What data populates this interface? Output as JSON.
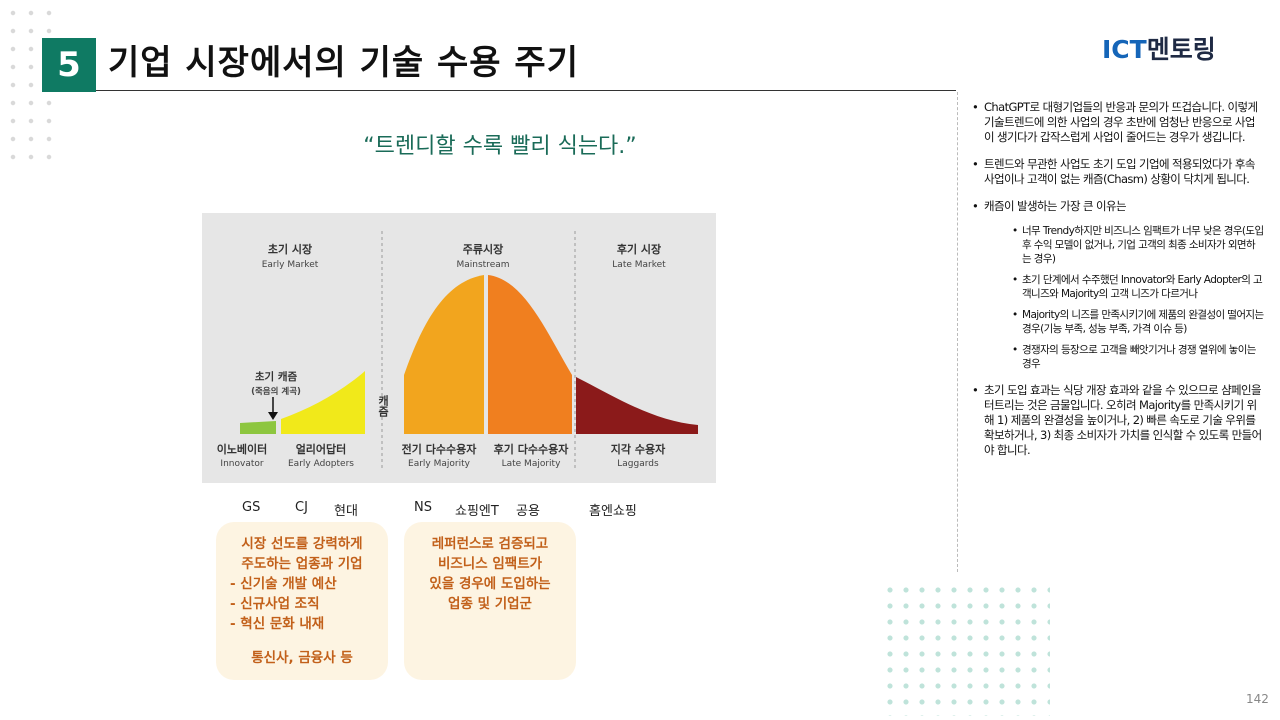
{
  "header": {
    "section_number": "5",
    "title": "기업 시장에서의 기술 수용 주기",
    "logo_ict": "ICT",
    "logo_mentoring": "멘토링"
  },
  "quote": "“트렌디할 수록 빨리 식는다.”",
  "diagram": {
    "segments": [
      {
        "ko": "초기 시장",
        "en": "Early Market"
      },
      {
        "ko": "주류시장",
        "en": "Mainstream"
      },
      {
        "ko": "후기 시장",
        "en": "Late Market"
      }
    ],
    "chasm_vertical": "캐즘",
    "chasm_label": "초기 캐즘",
    "chasm_sublabel": "(죽음의 계곡)",
    "groups": [
      {
        "ko": "이노베이터",
        "en": "Innovator"
      },
      {
        "ko": "얼리어답터",
        "en": "Early Adopters"
      },
      {
        "ko": "전기 다수수용자",
        "en": "Early Majority"
      },
      {
        "ko": "후기 다수수용자",
        "en": "Late Majority"
      },
      {
        "ko": "지각 수용자",
        "en": "Laggards"
      }
    ],
    "colors": {
      "innovator": "#8dc63f",
      "early_adopters": "#f1e91a",
      "early_majority": "#f2a51e",
      "late_majority": "#f07f1f",
      "laggards": "#8b1a1a"
    }
  },
  "firms": {
    "gs": "GS",
    "cj": "CJ",
    "hyundai": "현대",
    "ns": "NS",
    "shopping_t": "쇼핑엔T",
    "public": "공용",
    "home_shopping": "홈엔쇼핑"
  },
  "note_1": {
    "line1": "시장 선도를 강력하게",
    "line2": "주도하는 업종과 기업",
    "line3": "-  신기술 개발 예산",
    "line4": "-  신규사업 조직",
    "line5": "-  혁신 문화 내재",
    "line6": "통신사, 금융사 등"
  },
  "note_2": {
    "line1": "레퍼런스로 검증되고",
    "line2": "비즈니스 임팩트가",
    "line3": "있을 경우에 도입하는",
    "line4": "업종 및 기업군"
  },
  "right_panel": {
    "bullet1": "ChatGPT로 대형기업들의 반응과 문의가 뜨겁습니다. 이렇게 기술트렌드에 의한 사업의 경우 초반에 엄청난 반응으로 사업이 생기다가 갑작스럽게 사업이 줄어드는 경우가 생깁니다.",
    "bullet2": "트렌드와 무관한 사업도 초기 도입 기업에 적용되었다가 후속 사업이나 고객이 없는 캐즘(Chasm) 상황이 닥치게 됩니다.",
    "bullet3": "캐즘이 발생하는 가장 큰 이유는",
    "sub1": "너무 Trendy하지만 비즈니스 임팩트가 너무 낮은 경우(도입 후 수익 모델이 없거나, 기업 고객의 최종 소비자가 외면하는 경우)",
    "sub2": "초기 단계에서 수주했던 Innovator와 Early Adopter의 고객니즈와 Majority의 고객 니즈가 다르거나",
    "sub3": "Majority의 니즈를 만족시키기에 제품의 완결성이 떨어지는 경우(기능 부족, 성능 부족, 가격 이슈 등)",
    "sub4": "경쟁자의 등장으로 고객을 빼앗기거나 경쟁 열위에 놓이는 경우",
    "bullet4": "초기 도입 효과는 식당 개장 효과와 같을 수 있으므로 샴페인을 터트리는 것은 금물입니다. 오히려 Majority를 만족시키기 위해 1) 제품의 완결성을 높이거나, 2) 빠른 속도로 기술 우위를 확보하거나, 3) 최종 소비자가 가치를 인식할 수 있도록 만들어야 합니다."
  },
  "page_number": "142"
}
